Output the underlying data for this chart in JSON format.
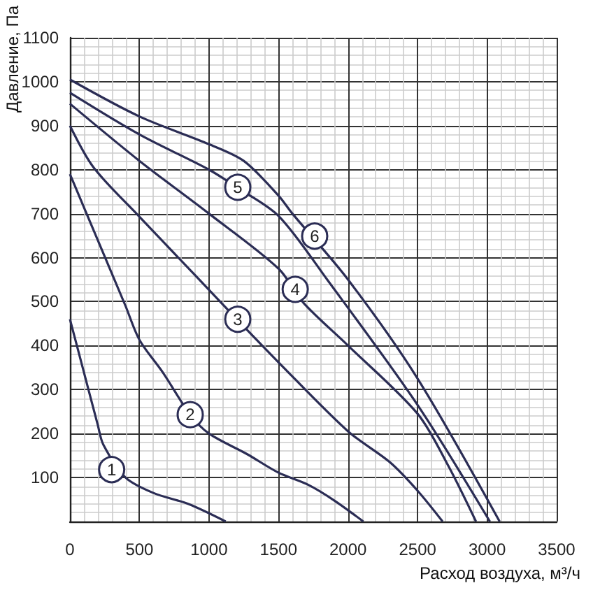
{
  "chart_data": {
    "type": "line",
    "xlabel": "Расход воздуха, м³/ч",
    "ylabel": "Давление, Па",
    "xlim": [
      0,
      3500
    ],
    "xticks": [
      0,
      500,
      1000,
      1500,
      2000,
      2500,
      3000,
      3500
    ],
    "ylim": [
      0,
      1100
    ],
    "yticks": [
      {
        "value": 0,
        "label": null
      },
      100,
      200,
      300,
      400,
      500,
      600,
      700,
      800,
      900,
      1000,
      1100
    ],
    "grid": true,
    "marker": "none",
    "line_style": "solid",
    "series": [
      {
        "color": "#2b2d55",
        "x": [
          0,
          100,
          200,
          240,
          400,
          600,
          850,
          1120
        ],
        "values": [
          460,
          340,
          220,
          175,
          100,
          65,
          40,
          0
        ]
      },
      {
        "color": "#2b2d55",
        "x": [
          0,
          200,
          400,
          500,
          670,
          865,
          1000,
          1275,
          1500,
          1710,
          1900,
          2110
        ],
        "values": [
          790,
          640,
          490,
          413,
          338,
          243,
          200,
          153,
          111,
          84,
          48,
          0
        ]
      },
      {
        "color": "#2b2d55",
        "x": [
          0,
          170,
          500,
          900,
          1200,
          1500,
          2000,
          2300,
          2500,
          2680
        ],
        "values": [
          900,
          805,
          693,
          560,
          460,
          362,
          205,
          135,
          70,
          0
        ]
      },
      {
        "color": "#2b2d55",
        "x": [
          0,
          500,
          1000,
          1500,
          1680,
          2000,
          2500,
          2720,
          2920
        ],
        "values": [
          950,
          820,
          700,
          575,
          497,
          400,
          245,
          127,
          0
        ]
      },
      {
        "color": "#2b2d55",
        "x": [
          0,
          500,
          1000,
          1200,
          1500,
          1850,
          2500,
          3020
        ],
        "values": [
          975,
          880,
          800,
          760,
          695,
          550,
          265,
          0
        ]
      },
      {
        "color": "#2b2d55",
        "x": [
          0,
          500,
          1000,
          1250,
          1500,
          1600,
          2000,
          2500,
          3090
        ],
        "values": [
          1005,
          921,
          858,
          820,
          741,
          700,
          550,
          325,
          0
        ]
      }
    ],
    "annotations": [
      {
        "text": "1",
        "x": 300,
        "y": 118
      },
      {
        "text": "2",
        "x": 865,
        "y": 243
      },
      {
        "text": "3",
        "x": 1207,
        "y": 460
      },
      {
        "text": "4",
        "x": 1620,
        "y": 528
      },
      {
        "text": "5",
        "x": 1207,
        "y": 760
      },
      {
        "text": "6",
        "x": 1760,
        "y": 649
      }
    ]
  }
}
